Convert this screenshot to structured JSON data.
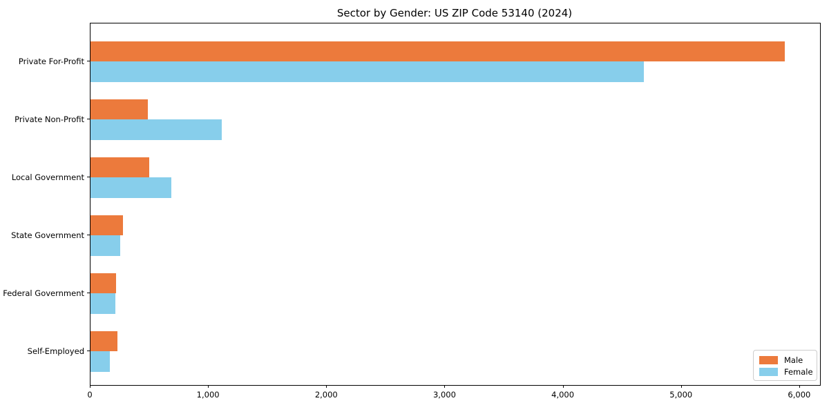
{
  "title": "Sector by Gender: US ZIP Code 53140 (2024)",
  "chart_data": {
    "type": "bar",
    "orientation": "horizontal",
    "title": "Sector by Gender: US ZIP Code 53140 (2024)",
    "categories": [
      "Private For-Profit",
      "Private Non-Profit",
      "Local Government",
      "State Government",
      "Federal Government",
      "Self-Employed"
    ],
    "series": [
      {
        "name": "Male",
        "color": "#EC7A3C",
        "values": [
          5870,
          485,
          495,
          275,
          215,
          225
        ]
      },
      {
        "name": "Female",
        "color": "#87CEEB",
        "values": [
          4680,
          1110,
          685,
          250,
          210,
          165
        ]
      }
    ],
    "xlabel": "",
    "ylabel": "",
    "xlim": [
      0,
      6170
    ],
    "xticks": [
      0,
      1000,
      2000,
      3000,
      4000,
      5000,
      6000
    ],
    "xtick_labels": [
      "0",
      "1,000",
      "2,000",
      "3,000",
      "4,000",
      "5,000",
      "6,000"
    ],
    "grid": false,
    "legend_position": "lower right"
  }
}
